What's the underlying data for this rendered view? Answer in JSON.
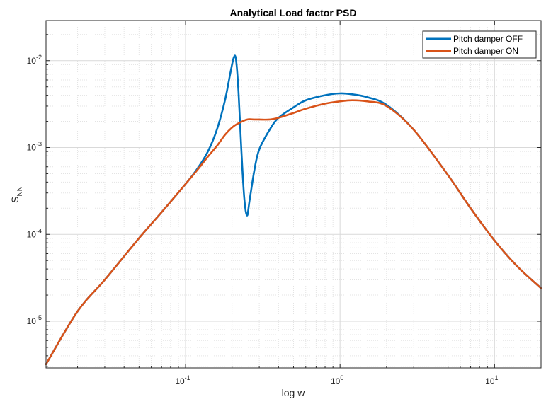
{
  "chart_data": {
    "type": "line",
    "title": "Analytical Load factor PSD",
    "xlabel": "log w",
    "ylabel": {
      "main": "S",
      "sub": "NN"
    },
    "xscale": "log",
    "yscale": "log",
    "xlim": [
      0.0125,
      20
    ],
    "ylim": [
      2.9e-06,
      0.029
    ],
    "grid": true,
    "minor_grid": true,
    "legend_position": "top-right",
    "x_ticks": [
      {
        "value": 0.1,
        "base": "10",
        "exp": "-1"
      },
      {
        "value": 1,
        "base": "10",
        "exp": "0"
      },
      {
        "value": 10,
        "base": "10",
        "exp": "1"
      }
    ],
    "y_ticks": [
      {
        "value": 1e-05,
        "base": "10",
        "exp": "-5"
      },
      {
        "value": 0.0001,
        "base": "10",
        "exp": "-4"
      },
      {
        "value": 0.001,
        "base": "10",
        "exp": "-3"
      },
      {
        "value": 0.01,
        "base": "10",
        "exp": "-2"
      }
    ],
    "series": [
      {
        "name": "Pitch damper OFF",
        "color": "#0072BD",
        "x": [
          0.0125,
          0.02,
          0.03,
          0.05,
          0.07,
          0.1,
          0.12,
          0.14,
          0.16,
          0.18,
          0.195,
          0.205,
          0.212,
          0.22,
          0.23,
          0.24,
          0.25,
          0.26,
          0.28,
          0.3,
          0.35,
          0.4,
          0.5,
          0.6,
          0.8,
          1.0,
          1.2,
          1.5,
          2.0,
          3.0,
          5.0,
          7.0,
          10.0,
          14.0,
          20.0
        ],
        "y": [
          3.2e-06,
          1.3e-05,
          3e-05,
          9.05e-05,
          0.00018,
          0.00038,
          0.00058,
          0.00091,
          0.00163,
          0.0035,
          0.0072,
          0.0108,
          0.0104,
          0.0045,
          0.0009,
          0.00026,
          0.000165,
          0.00025,
          0.00057,
          0.00095,
          0.0016,
          0.0022,
          0.0029,
          0.0035,
          0.004,
          0.0042,
          0.0041,
          0.0038,
          0.0031,
          0.0016,
          0.00048,
          0.0002,
          8.5e-05,
          4.3e-05,
          2.4e-05
        ]
      },
      {
        "name": "Pitch damper ON",
        "color": "#D95319",
        "x": [
          0.0125,
          0.02,
          0.03,
          0.05,
          0.07,
          0.1,
          0.12,
          0.14,
          0.16,
          0.18,
          0.2,
          0.22,
          0.25,
          0.28,
          0.3,
          0.35,
          0.4,
          0.5,
          0.6,
          0.8,
          1.0,
          1.2,
          1.5,
          2.0,
          3.0,
          5.0,
          7.0,
          10.0,
          14.0,
          20.0
        ],
        "y": [
          3.2e-06,
          1.3e-05,
          3e-05,
          9.05e-05,
          0.00018,
          0.00038,
          0.00056,
          0.00079,
          0.00105,
          0.0014,
          0.0017,
          0.0019,
          0.0021,
          0.0021,
          0.0021,
          0.0021,
          0.0022,
          0.0025,
          0.0028,
          0.0032,
          0.0034,
          0.0035,
          0.0034,
          0.003,
          0.0016,
          0.00048,
          0.0002,
          8.5e-05,
          4.3e-05,
          2.4e-05
        ]
      }
    ]
  }
}
